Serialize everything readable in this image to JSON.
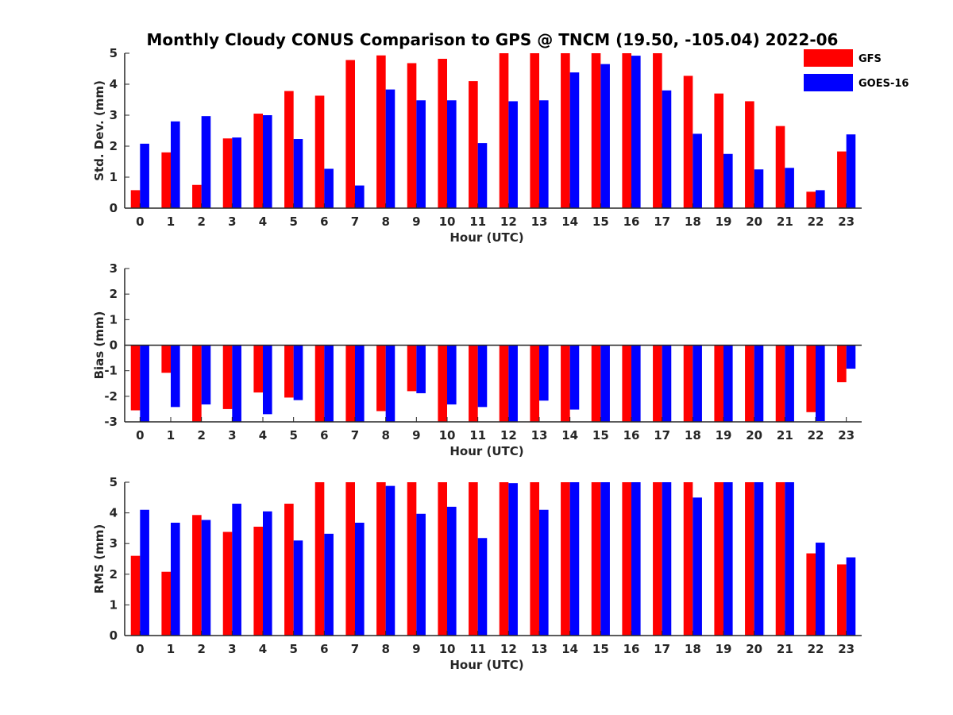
{
  "chart_data": {
    "type": "bar",
    "title": "Monthly Cloudy CONUS Comparison to GPS @ TNCM (19.50, -105.04) 2022-06",
    "legend": {
      "placement": "top-right",
      "entries": [
        {
          "name": "GFS",
          "color": "#ff0000"
        },
        {
          "name": "GOES-16",
          "color": "#0000ff"
        }
      ]
    },
    "categories": [
      "0",
      "1",
      "2",
      "3",
      "4",
      "5",
      "6",
      "7",
      "8",
      "9",
      "10",
      "11",
      "12",
      "13",
      "14",
      "15",
      "16",
      "17",
      "18",
      "19",
      "20",
      "21",
      "22",
      "23"
    ],
    "panels": [
      {
        "ylabel": "Std. Dev. (mm)",
        "xlabel": "Hour (UTC)",
        "ylim": [
          0,
          5
        ],
        "yticks": [
          "0",
          "1",
          "2",
          "3",
          "4",
          "5"
        ],
        "grid": false,
        "series": [
          {
            "name": "GFS",
            "values": [
              0.58,
              1.8,
              0.75,
              2.25,
              3.05,
              3.78,
              3.63,
              4.78,
              4.93,
              4.68,
              4.82,
              4.1,
              5,
              5,
              5,
              5,
              5,
              5,
              4.27,
              3.7,
              3.45,
              2.65,
              0.53,
              1.83
            ]
          },
          {
            "name": "GOES-16",
            "values": [
              2.08,
              2.8,
              2.97,
              2.28,
              3.0,
              2.23,
              1.27,
              0.73,
              3.83,
              3.48,
              3.48,
              2.1,
              3.45,
              3.48,
              4.38,
              4.65,
              4.92,
              3.8,
              2.4,
              1.75,
              1.25,
              1.3,
              0.58,
              2.38
            ]
          }
        ]
      },
      {
        "ylabel": "Bias (mm)",
        "xlabel": "Hour (UTC)",
        "ylim": [
          -3,
          3
        ],
        "yticks": [
          "-3",
          "-2",
          "-1",
          "0",
          "1",
          "2",
          "3"
        ],
        "grid": false,
        "series": [
          {
            "name": "GFS",
            "values": [
              -2.55,
              -1.08,
              -3,
              -2.5,
              -1.85,
              -2.05,
              -3,
              -3,
              -2.58,
              -1.8,
              -3,
              -3,
              -3,
              -3,
              -3,
              -3,
              -3,
              -3,
              -3,
              -3,
              -3,
              -3,
              -2.62,
              -1.45
            ]
          },
          {
            "name": "GOES-16",
            "values": [
              -3,
              -2.42,
              -2.32,
              -3,
              -2.7,
              -2.15,
              -3,
              -3,
              -3,
              -1.88,
              -2.32,
              -2.42,
              -3,
              -2.17,
              -2.52,
              -3,
              -3,
              -3,
              -3,
              -3,
              -3,
              -3,
              -2.97,
              -0.92
            ]
          }
        ]
      },
      {
        "ylabel": "RMS (mm)",
        "xlabel": "Hour (UTC)",
        "ylim": [
          0,
          5
        ],
        "yticks": [
          "0",
          "1",
          "2",
          "3",
          "4",
          "5"
        ],
        "grid": false,
        "series": [
          {
            "name": "GFS",
            "values": [
              2.6,
              2.08,
              3.93,
              3.38,
              3.55,
              4.3,
              5,
              5,
              5,
              5,
              5,
              5,
              5,
              5,
              5,
              5,
              5,
              5,
              5,
              5,
              5,
              5,
              2.68,
              2.32
            ]
          },
          {
            "name": "GOES-16",
            "values": [
              4.1,
              3.68,
              3.77,
              4.3,
              4.05,
              3.1,
              3.32,
              3.68,
              4.88,
              3.97,
              4.2,
              3.18,
              4.97,
              4.1,
              5,
              5,
              5,
              5,
              4.5,
              5,
              5,
              5,
              3.03,
              2.55
            ]
          }
        ]
      }
    ]
  }
}
